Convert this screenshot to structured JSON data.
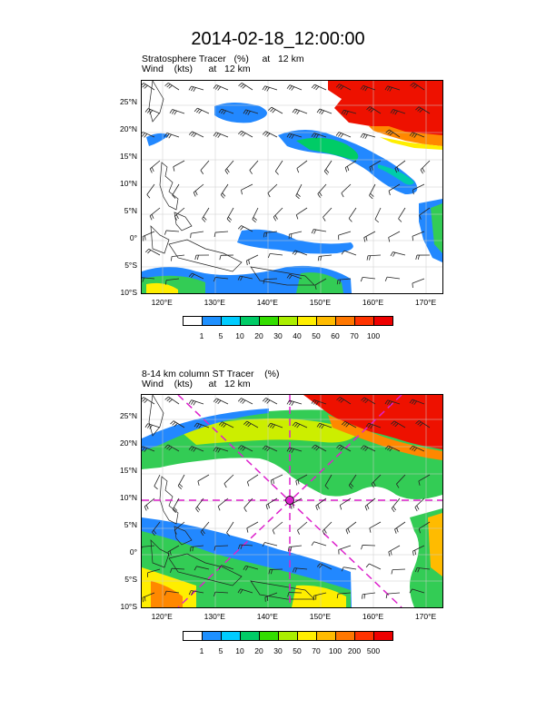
{
  "title": "2014-02-18_12:00:00",
  "panels": [
    {
      "label_line1": "Stratosphere Tracer   (%)     at   12 km",
      "label_line2": "Wind    (kts)      at   12 km",
      "colorbar_labels": [
        "1",
        "5",
        "10",
        "20",
        "30",
        "40",
        "50",
        "60",
        "70",
        "100"
      ],
      "colorbar_colors": [
        "#ffffff",
        "#1e90ff",
        "#00ccff",
        "#00cc66",
        "#33dd00",
        "#aaee00",
        "#ffee00",
        "#ffbb00",
        "#ff7700",
        "#ff3300",
        "#ee0000"
      ]
    },
    {
      "label_line1": "8-14 km column ST Tracer    (%)",
      "label_line2": "Wind    (kts)      at   12 km",
      "colorbar_labels": [
        "1",
        "5",
        "10",
        "20",
        "30",
        "50",
        "70",
        "100",
        "200",
        "500"
      ],
      "colorbar_colors": [
        "#ffffff",
        "#1e90ff",
        "#00ccff",
        "#00cc66",
        "#33dd00",
        "#aaee00",
        "#ffee00",
        "#ffbb00",
        "#ff7700",
        "#ff3300",
        "#ee0000"
      ]
    }
  ],
  "axes": {
    "lat_labels": [
      "25°N",
      "20°N",
      "15°N",
      "10°N",
      "5°N",
      "0°",
      "5°S",
      "10°S"
    ],
    "lat_values": [
      25,
      20,
      15,
      10,
      5,
      0,
      -5,
      -10
    ],
    "lon_labels": [
      "120°E",
      "130°E",
      "140°E",
      "150°E",
      "160°E",
      "170°E"
    ],
    "lon_values": [
      120,
      130,
      140,
      150,
      160,
      170
    ],
    "lon_range": [
      116,
      173
    ],
    "lat_range": [
      -10,
      29
    ]
  }
}
